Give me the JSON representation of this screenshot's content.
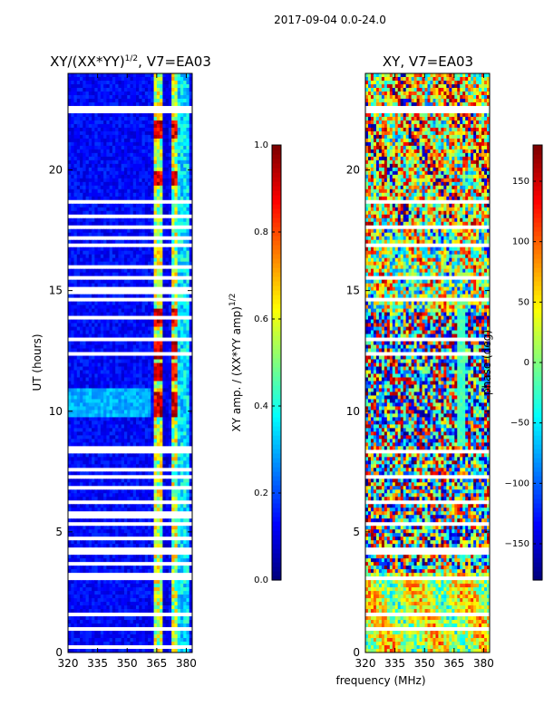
{
  "figure": {
    "suptitle": "2017-09-04 0.0-24.0",
    "shared_xlabel": "frequency (MHz)"
  },
  "colors": {
    "jet": [
      "#00007f",
      "#0000ff",
      "#007fff",
      "#00ffff",
      "#7fff7f",
      "#ffff00",
      "#ff7f00",
      "#ff0000",
      "#7f0000"
    ],
    "gap": "#ffffff",
    "frame": "#000000"
  },
  "chart_data": [
    {
      "type": "heatmap",
      "title_main": "XY/(XX*YY)",
      "title_exponent": "1/2",
      "title_suffix": ", V7=EA03",
      "xlabel": "",
      "ylabel": "UT (hours)",
      "xlim": [
        320,
        383
      ],
      "ylim": [
        0,
        24
      ],
      "xticks": [
        "320",
        "335",
        "350",
        "365",
        "380"
      ],
      "xtick_values": [
        320,
        335,
        350,
        365,
        380
      ],
      "yticks": [
        "0",
        "5",
        "10",
        "15",
        "20"
      ],
      "ytick_values": [
        0,
        5,
        10,
        15,
        20
      ],
      "colorbar": {
        "label_main": "XY amp. / (XX*YY amp)",
        "label_exponent": "1/2",
        "range": [
          0.0,
          1.0
        ],
        "ticks": [
          "0.0",
          "0.2",
          "0.4",
          "0.6",
          "0.8",
          "1.0"
        ],
        "tick_values": [
          0.0,
          0.2,
          0.4,
          0.6,
          0.8,
          1.0
        ]
      },
      "flagged_hours": [
        0.3,
        0.9,
        1.6,
        3.0,
        3.2,
        3.6,
        4.2,
        4.7,
        5.3,
        5.7,
        6.2,
        6.8,
        7.3,
        7.6,
        8.3,
        8.5,
        9.6,
        12.4,
        13.0,
        13.9,
        14.6,
        15.0,
        15.6,
        15.9,
        16.9,
        17.1,
        17.6,
        18.1,
        18.6,
        19.2,
        20.7,
        22.4,
        22.6
      ],
      "bright_channel_ranges_mhz": [
        [
          363,
          368
        ],
        [
          372,
          376
        ]
      ],
      "bright_level": 0.55,
      "background_level": 0.15,
      "high_amp_hours": [
        10.0,
        10.4,
        11.6,
        12.4,
        13.8,
        19.6,
        21.6
      ]
    },
    {
      "type": "heatmap",
      "title_main": "XY",
      "title_exponent": "",
      "title_suffix": ", V7=EA03",
      "xlabel": "",
      "ylabel": "",
      "xlim": [
        320,
        383
      ],
      "ylim": [
        0,
        24
      ],
      "xticks": [
        "320",
        "335",
        "350",
        "365",
        "380"
      ],
      "xtick_values": [
        320,
        335,
        350,
        365,
        380
      ],
      "yticks": [
        "0",
        "5",
        "10",
        "15",
        "20"
      ],
      "ytick_values": [
        0,
        5,
        10,
        15,
        20
      ],
      "colorbar": {
        "label_main": "phase (deg)",
        "label_exponent": "",
        "range": [
          -180,
          180
        ],
        "ticks": [
          "−150",
          "−100",
          "−50",
          "0",
          "50",
          "100",
          "150"
        ],
        "tick_values": [
          -150,
          -100,
          -50,
          0,
          50,
          100,
          150
        ]
      },
      "flagged_hours": [
        0.9,
        1.6,
        3.0,
        4.2,
        5.3,
        6.2,
        7.3,
        8.3,
        9.6,
        12.4,
        13.0,
        14.6,
        15.6,
        16.9,
        17.6,
        18.6,
        19.2,
        20.7,
        22.4,
        22.6
      ],
      "band_structure": [
        {
          "hours": [
            0,
            3.2
          ],
          "phase_center_deg": 30,
          "spread_deg": 60
        },
        {
          "hours": [
            3.2,
            8.5
          ],
          "phase_center_deg": -60,
          "spread_deg": 170
        },
        {
          "hours": [
            8.5,
            14.0
          ],
          "phase_center_deg": -110,
          "spread_deg": 150
        },
        {
          "hours": [
            14.0,
            17.5
          ],
          "phase_center_deg": 10,
          "spread_deg": 120
        },
        {
          "hours": [
            17.5,
            24.0
          ],
          "phase_center_deg": 60,
          "spread_deg": 130
        }
      ],
      "uniform_phase_channel_range_mhz": [
        366,
        370
      ],
      "uniform_phase_hours": [
        8.5,
        14.0
      ],
      "uniform_phase_deg": -20
    }
  ]
}
